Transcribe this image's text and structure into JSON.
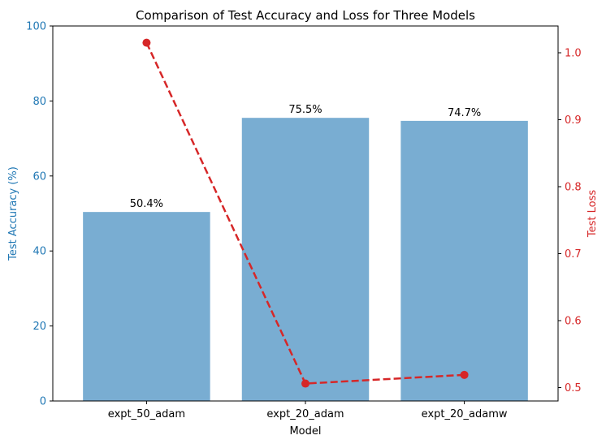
{
  "chart_data": {
    "type": "bar",
    "title": "Comparison of Test Accuracy and Loss for Three Models",
    "xlabel": "Model",
    "categories": [
      "expt_50_adam",
      "expt_20_adam",
      "expt_20_adamw"
    ],
    "ylabel_left": "Test Accuracy (%)",
    "ylabel_right": "Test Loss",
    "ylim_left": [
      0,
      100
    ],
    "yticks_left": [
      "0",
      "20",
      "40",
      "60",
      "80",
      "100"
    ],
    "ylim_right": [
      0.48,
      1.04
    ],
    "yticks_right": [
      "0.5",
      "0.6",
      "0.7",
      "0.8",
      "0.9",
      "1.0"
    ],
    "grid": false,
    "series": [
      {
        "type": "bar",
        "axis": "left",
        "values": [
          50.4,
          75.5,
          74.7
        ],
        "labels": [
          "50.4%",
          "75.5%",
          "74.7%"
        ],
        "color": "#1f77b4",
        "opacity": 0.6
      },
      {
        "type": "line",
        "axis": "right",
        "style": "dashed",
        "marker": "circle",
        "values": [
          1.015,
          0.506,
          0.519
        ],
        "color": "#d62728"
      }
    ],
    "colors": {
      "left_axis": "#1f77b4",
      "right_axis": "#d62728",
      "bar": "#1f77b4",
      "line": "#d62728"
    }
  }
}
